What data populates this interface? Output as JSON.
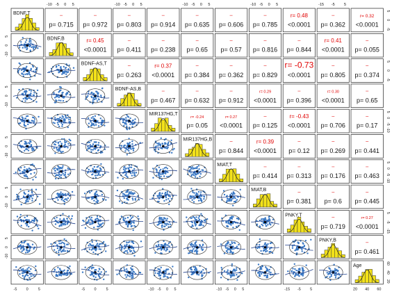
{
  "chart_data": {
    "type": "scatter",
    "title": "",
    "variables": [
      "BDNF,T",
      "BDNF,B",
      "BDNF-AS,T",
      "BDNF-AS,B",
      "MIR137HG,T",
      "MIR137HG,B",
      "MIAT,T",
      "MIAT,B",
      "PNKY,T",
      "PNKY,B",
      "Age"
    ],
    "cells": [
      {
        "row": 0,
        "col": 1,
        "r": "",
        "p": "p= 0.715"
      },
      {
        "row": 0,
        "col": 2,
        "r": "",
        "p": "p= 0.972"
      },
      {
        "row": 0,
        "col": 3,
        "r": "",
        "p": "p= 0.803"
      },
      {
        "row": 0,
        "col": 4,
        "r": "",
        "p": "p= 0.914"
      },
      {
        "row": 0,
        "col": 5,
        "r": "",
        "p": "p= 0.635"
      },
      {
        "row": 0,
        "col": 6,
        "r": "",
        "p": "p= 0.606"
      },
      {
        "row": 0,
        "col": 7,
        "r": "",
        "p": "p= 0.785"
      },
      {
        "row": 0,
        "col": 8,
        "r": "r= 0.48",
        "p": "<0.0001",
        "size": 2
      },
      {
        "row": 0,
        "col": 9,
        "r": "",
        "p": "p= 0.362"
      },
      {
        "row": 0,
        "col": 10,
        "r": "r= 0.32",
        "p": "<0.0001",
        "size": 1
      },
      {
        "row": 1,
        "col": 2,
        "r": "r= 0.45",
        "p": "<0.0001",
        "size": 2
      },
      {
        "row": 1,
        "col": 3,
        "r": "",
        "p": "p= 0.411"
      },
      {
        "row": 1,
        "col": 4,
        "r": "",
        "p": "p= 0.238"
      },
      {
        "row": 1,
        "col": 5,
        "r": "",
        "p": "p= 0.65"
      },
      {
        "row": 1,
        "col": 6,
        "r": "",
        "p": "p= 0.57"
      },
      {
        "row": 1,
        "col": 7,
        "r": "",
        "p": "p= 0.816"
      },
      {
        "row": 1,
        "col": 8,
        "r": "",
        "p": "p= 0.844"
      },
      {
        "row": 1,
        "col": 9,
        "r": "r= 0.41",
        "p": "<0.0001",
        "size": 2
      },
      {
        "row": 1,
        "col": 10,
        "r": "",
        "p": "p= 0.055"
      },
      {
        "row": 2,
        "col": 3,
        "r": "",
        "p": "p= 0.263"
      },
      {
        "row": 2,
        "col": 4,
        "r": "r= 0.37",
        "p": "<0.0001",
        "size": 2
      },
      {
        "row": 2,
        "col": 5,
        "r": "",
        "p": "p= 0.384"
      },
      {
        "row": 2,
        "col": 6,
        "r": "",
        "p": "p= 0.362"
      },
      {
        "row": 2,
        "col": 7,
        "r": "",
        "p": "p= 0.829"
      },
      {
        "row": 2,
        "col": 8,
        "r": "r= -0.73",
        "p": "<0.0001",
        "size": 3
      },
      {
        "row": 2,
        "col": 9,
        "r": "",
        "p": "p= 0.805"
      },
      {
        "row": 2,
        "col": 10,
        "r": "",
        "p": "p= 0.374"
      },
      {
        "row": 3,
        "col": 4,
        "r": "",
        "p": "p= 0.467"
      },
      {
        "row": 3,
        "col": 5,
        "r": "",
        "p": "p= 0.632"
      },
      {
        "row": 3,
        "col": 6,
        "r": "",
        "p": "p= 0.912"
      },
      {
        "row": 3,
        "col": 7,
        "r": "r= 0.29",
        "p": "<0.0001",
        "size": 0
      },
      {
        "row": 3,
        "col": 8,
        "r": "",
        "p": "p= 0.396"
      },
      {
        "row": 3,
        "col": 9,
        "r": "r= 0.30",
        "p": "<0.0001",
        "size": 0
      },
      {
        "row": 3,
        "col": 10,
        "r": "",
        "p": "p= 0.65"
      },
      {
        "row": 4,
        "col": 5,
        "r": "r= -0.24",
        "p": "p= 0.05",
        "size": 0
      },
      {
        "row": 4,
        "col": 6,
        "r": "r= 0.27",
        "p": "<0.0001",
        "size": 0
      },
      {
        "row": 4,
        "col": 7,
        "r": "",
        "p": "p= 0.125"
      },
      {
        "row": 4,
        "col": 8,
        "r": "r= -0.43",
        "p": "<0.0001",
        "size": 2
      },
      {
        "row": 4,
        "col": 9,
        "r": "",
        "p": "p= 0.706"
      },
      {
        "row": 4,
        "col": 10,
        "r": "",
        "p": "p= 0.17"
      },
      {
        "row": 5,
        "col": 6,
        "r": "",
        "p": "p= 0.844"
      },
      {
        "row": 5,
        "col": 7,
        "r": "r= 0.39",
        "p": "<0.0001",
        "size": 2
      },
      {
        "row": 5,
        "col": 8,
        "r": "",
        "p": "p= 0.12"
      },
      {
        "row": 5,
        "col": 9,
        "r": "",
        "p": "p= 0.269"
      },
      {
        "row": 5,
        "col": 10,
        "r": "",
        "p": "p= 0.441"
      },
      {
        "row": 6,
        "col": 7,
        "r": "",
        "p": "p= 0.414"
      },
      {
        "row": 6,
        "col": 8,
        "r": "",
        "p": "p= 0.313"
      },
      {
        "row": 6,
        "col": 9,
        "r": "",
        "p": "p= 0.176"
      },
      {
        "row": 6,
        "col": 10,
        "r": "",
        "p": "p= 0.463"
      },
      {
        "row": 7,
        "col": 8,
        "r": "",
        "p": "p= 0.381"
      },
      {
        "row": 7,
        "col": 9,
        "r": "",
        "p": "p= 0.6"
      },
      {
        "row": 7,
        "col": 10,
        "r": "",
        "p": "p= 0.445"
      },
      {
        "row": 8,
        "col": 9,
        "r": "",
        "p": "p= 0.719"
      },
      {
        "row": 8,
        "col": 10,
        "r": "r= 0.27",
        "p": "<0.0001",
        "size": 0
      },
      {
        "row": 9,
        "col": 10,
        "r": "",
        "p": "p= 0.461"
      }
    ],
    "top_ticks": [
      {
        "col": 1,
        "labels": [
          "-10",
          "-5",
          "0",
          "5"
        ]
      },
      {
        "col": 3,
        "labels": [
          "-10",
          "-5",
          "0",
          "5"
        ]
      },
      {
        "col": 5,
        "labels": [
          "-10",
          "-5",
          "0",
          "5"
        ]
      },
      {
        "col": 7,
        "labels": [
          "-10",
          "-5",
          "0",
          "5"
        ]
      },
      {
        "col": 9,
        "labels": [
          "-15",
          "-5",
          "5"
        ]
      }
    ],
    "bottom_ticks": [
      {
        "col": 0,
        "labels": [
          "-5",
          "0",
          "5"
        ]
      },
      {
        "col": 2,
        "labels": [
          "-5",
          "0",
          "5"
        ]
      },
      {
        "col": 4,
        "labels": [
          "-10",
          "-5",
          "0",
          "5"
        ]
      },
      {
        "col": 6,
        "labels": [
          "-10",
          "-5",
          "0",
          "5"
        ]
      },
      {
        "col": 8,
        "labels": [
          "-15",
          "-5",
          "5"
        ]
      },
      {
        "col": 10,
        "labels": [
          "20",
          "40",
          "60"
        ]
      }
    ],
    "left_ticks": [
      {
        "row": 1,
        "labels": [
          "-10",
          "0",
          "5"
        ]
      },
      {
        "row": 3,
        "labels": [
          "-10",
          "0",
          "5"
        ]
      },
      {
        "row": 5,
        "labels": [
          "-10",
          "0",
          "5"
        ]
      },
      {
        "row": 7,
        "labels": [
          "-10",
          "0",
          "5"
        ]
      },
      {
        "row": 9,
        "labels": [
          "-10",
          "0",
          "5"
        ]
      }
    ],
    "right_ticks": [
      {
        "row": 0,
        "labels": [
          "-5",
          "0",
          "5"
        ]
      },
      {
        "row": 2,
        "labels": [
          "-5",
          "0",
          "5"
        ]
      },
      {
        "row": 4,
        "labels": [
          "-10",
          "-5",
          "0",
          "5"
        ]
      },
      {
        "row": 6,
        "labels": [
          "-10",
          "-5",
          "0",
          "5"
        ]
      },
      {
        "row": 8,
        "labels": [
          "-15",
          "-5",
          "5"
        ]
      },
      {
        "row": 10,
        "labels": [
          "20",
          "40",
          "60"
        ]
      }
    ],
    "colors": {
      "points": "#3a78c4",
      "hist": "#f3e21a",
      "hist_edge": "#333333",
      "red": "#e00000",
      "frame": "#222222"
    }
  }
}
